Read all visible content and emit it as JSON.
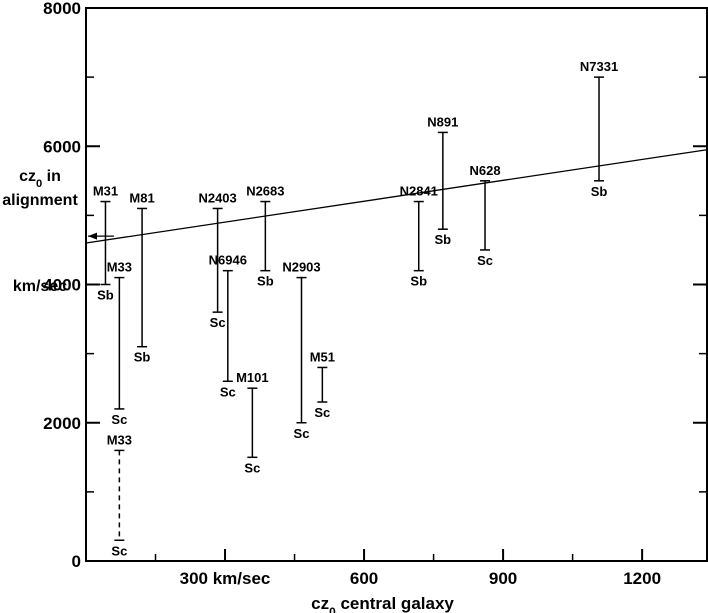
{
  "chart_data": {
    "type": "range",
    "xlabel": "cz₀ central galaxy",
    "xlabel_parts": {
      "pre": "cz",
      "sub": "0",
      "post": " central galaxy"
    },
    "ylabel_lines": [
      {
        "pre": "cz",
        "sub": "0",
        "post": " in"
      },
      {
        "pre": "alignment",
        "sub": "",
        "post": ""
      },
      {
        "pre": "km/sec",
        "sub": "",
        "post": ""
      }
    ],
    "xlim": [
      0,
      1340
    ],
    "ylim": [
      0,
      8000
    ],
    "y_ticks": [
      {
        "value": 0,
        "label": "0"
      },
      {
        "value": 2000,
        "label": "2000"
      },
      {
        "value": 4000,
        "label": "4000"
      },
      {
        "value": 6000,
        "label": "6000"
      },
      {
        "value": 8000,
        "label": "8000"
      }
    ],
    "y_minor_ticks": [
      1000,
      3000,
      5000,
      7000
    ],
    "x_ticks": [
      {
        "value": 300,
        "label": "300 km/sec"
      },
      {
        "value": 600,
        "label": "600"
      },
      {
        "value": 900,
        "label": "900"
      },
      {
        "value": 1200,
        "label": "1200"
      }
    ],
    "x_minor_ticks": [
      150,
      450,
      750,
      1050
    ],
    "trend_line": {
      "x": [
        0,
        1340
      ],
      "y": [
        4600,
        5950
      ]
    },
    "arrow_y": 4700,
    "series": [
      {
        "name": "M31",
        "x": 42,
        "y_low": 4000,
        "y_high": 5200,
        "type": "Sb",
        "dashed": false
      },
      {
        "name": "M33",
        "x": 72,
        "y_low": 2200,
        "y_high": 4100,
        "type": "Sc",
        "dashed": false
      },
      {
        "name": "M33",
        "x": 72,
        "y_low": 300,
        "y_high": 1600,
        "type": "Sc",
        "dashed": true
      },
      {
        "name": "M81",
        "x": 121,
        "y_low": 3100,
        "y_high": 5100,
        "type": "Sb",
        "dashed": false
      },
      {
        "name": "N2403",
        "x": 284,
        "y_low": 3600,
        "y_high": 5100,
        "type": "Sc",
        "dashed": false
      },
      {
        "name": "N6946",
        "x": 306,
        "y_low": 2600,
        "y_high": 4200,
        "type": "Sc",
        "dashed": false
      },
      {
        "name": "N2683",
        "x": 387,
        "y_low": 4200,
        "y_high": 5200,
        "type": "Sb",
        "dashed": false
      },
      {
        "name": "M101",
        "x": 359,
        "y_low": 1500,
        "y_high": 2500,
        "type": "Sc",
        "dashed": false
      },
      {
        "name": "N2903",
        "x": 465,
        "y_low": 2000,
        "y_high": 4100,
        "type": "Sc",
        "dashed": false
      },
      {
        "name": "M51",
        "x": 510,
        "y_low": 2300,
        "y_high": 2800,
        "type": "Sc",
        "dashed": false
      },
      {
        "name": "N2841",
        "x": 718,
        "y_low": 4200,
        "y_high": 5200,
        "type": "Sb",
        "dashed": false
      },
      {
        "name": "N891",
        "x": 770,
        "y_low": 4800,
        "y_high": 6200,
        "type": "Sb",
        "dashed": false
      },
      {
        "name": "N628",
        "x": 861,
        "y_low": 4500,
        "y_high": 5500,
        "type": "Sc",
        "dashed": false
      },
      {
        "name": "N7331",
        "x": 1107,
        "y_low": 5500,
        "y_high": 7000,
        "type": "Sb",
        "dashed": false
      }
    ]
  }
}
